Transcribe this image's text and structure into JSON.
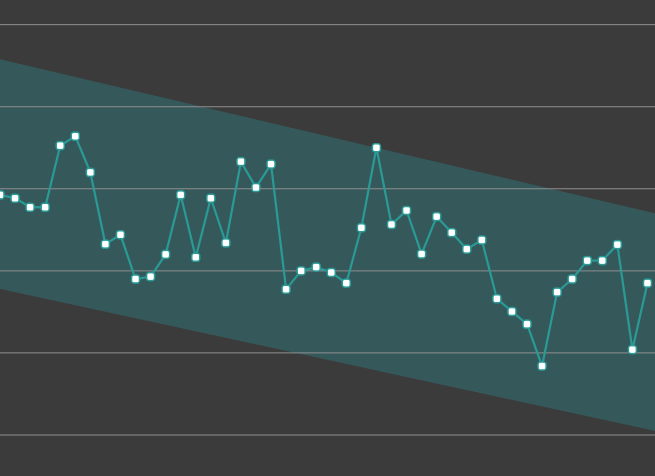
{
  "colors": {
    "background": "#3c3b3c",
    "grid": "#8f8e8f",
    "band_fill": "#35595a",
    "line": "#2a9a97",
    "point_fill": "#ffffff",
    "point_stroke": "#2a9a97"
  },
  "chart_data": {
    "type": "line",
    "title": "",
    "xlabel": "",
    "ylabel": "",
    "x_range": [
      0,
      43.5
    ],
    "y_range": [
      -5,
      6.6
    ],
    "grid": {
      "horizontal": true,
      "vertical": false,
      "y_values": [
        6,
        4,
        2,
        0,
        -2,
        -4
      ]
    },
    "legend": "none",
    "band": {
      "upper": {
        "x": [
          -0.5,
          43.5
        ],
        "y": [
          5.2,
          1.4
        ]
      },
      "lower": {
        "x": [
          -0.5,
          43.5
        ],
        "y": [
          -0.4,
          -3.9
        ]
      }
    },
    "series": [
      {
        "values": [
          1.85,
          1.77,
          1.55,
          1.55,
          3.05,
          3.28,
          2.4,
          0.65,
          0.88,
          -0.2,
          -0.14,
          0.4,
          1.85,
          0.33,
          1.77,
          0.68,
          2.66,
          2.03,
          2.6,
          -0.45,
          0.0,
          0.09,
          -0.04,
          -0.3,
          1.05,
          3.0,
          1.13,
          1.47,
          0.41,
          1.32,
          0.93,
          0.53,
          0.75,
          -0.68,
          -0.99,
          -1.3,
          -2.32,
          -0.52,
          -0.2,
          0.25,
          0.25,
          0.64,
          -1.92,
          -0.3
        ]
      }
    ]
  }
}
